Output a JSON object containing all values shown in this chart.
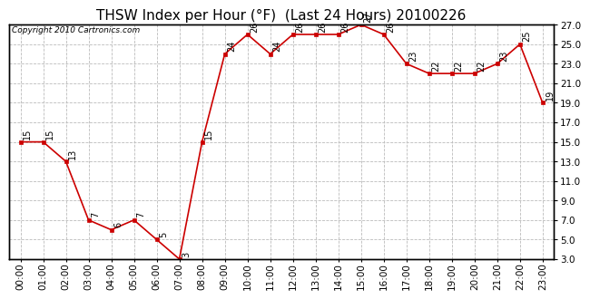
{
  "title": "THSW Index per Hour (°F)  (Last 24 Hours) 20100226",
  "copyright": "Copyright 2010 Cartronics.com",
  "hours": [
    "00:00",
    "01:00",
    "02:00",
    "03:00",
    "04:00",
    "05:00",
    "06:00",
    "07:00",
    "08:00",
    "09:00",
    "10:00",
    "11:00",
    "12:00",
    "13:00",
    "14:00",
    "15:00",
    "16:00",
    "17:00",
    "18:00",
    "19:00",
    "20:00",
    "21:00",
    "22:00",
    "23:00"
  ],
  "values": [
    15,
    15,
    13,
    7,
    6,
    7,
    5,
    3,
    15,
    24,
    26,
    24,
    26,
    26,
    26,
    27,
    26,
    23,
    22,
    22,
    22,
    23,
    25,
    19
  ],
  "line_color": "#cc0000",
  "marker_color": "#cc0000",
  "bg_color": "#ffffff",
  "grid_color": "#bbbbbb",
  "ylim_min": 3.0,
  "ylim_max": 27.0,
  "ytick_step": 2.0,
  "title_fontsize": 11,
  "label_fontsize": 7,
  "axis_fontsize": 7.5,
  "copyright_fontsize": 6.5
}
